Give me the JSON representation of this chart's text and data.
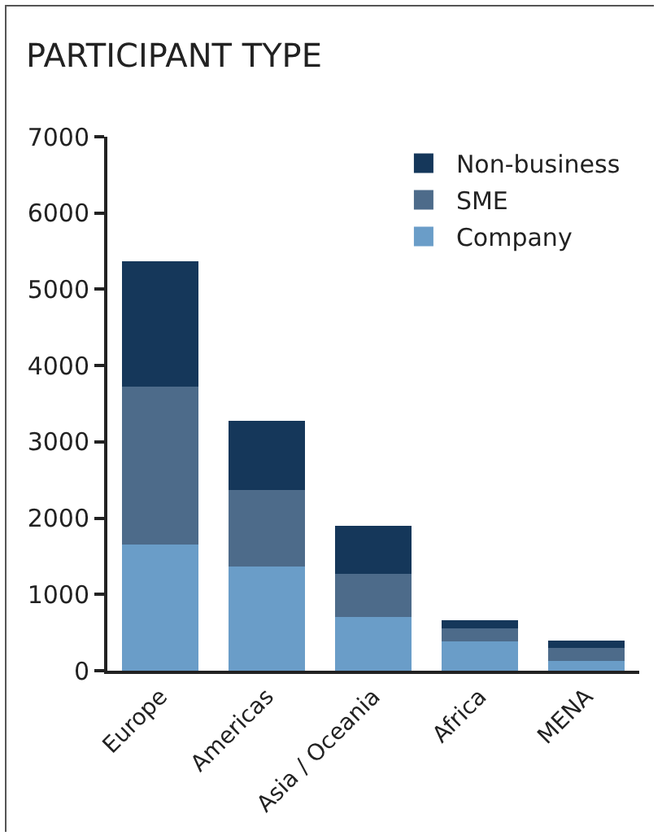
{
  "chart_data": {
    "type": "bar",
    "title": "PARTICIPANT TYPE",
    "categories": [
      "Europe",
      "Americas",
      "Asia / Oceania",
      "Africa",
      "MENA"
    ],
    "stacked": true,
    "series": [
      {
        "name": "Company",
        "color": "#6a9dc8",
        "values": [
          1650,
          1370,
          700,
          380,
          130
        ]
      },
      {
        "name": "SME",
        "color": "#4d6b8a",
        "values": [
          2070,
          1000,
          570,
          170,
          170
        ]
      },
      {
        "name": "Non-business",
        "color": "#15375a",
        "values": [
          1650,
          910,
          630,
          110,
          100
        ]
      }
    ],
    "ylim": [
      0,
      7000
    ],
    "yticks": [
      0,
      1000,
      2000,
      3000,
      4000,
      5000,
      6000,
      7000
    ],
    "grid": false,
    "legend": "top right"
  }
}
